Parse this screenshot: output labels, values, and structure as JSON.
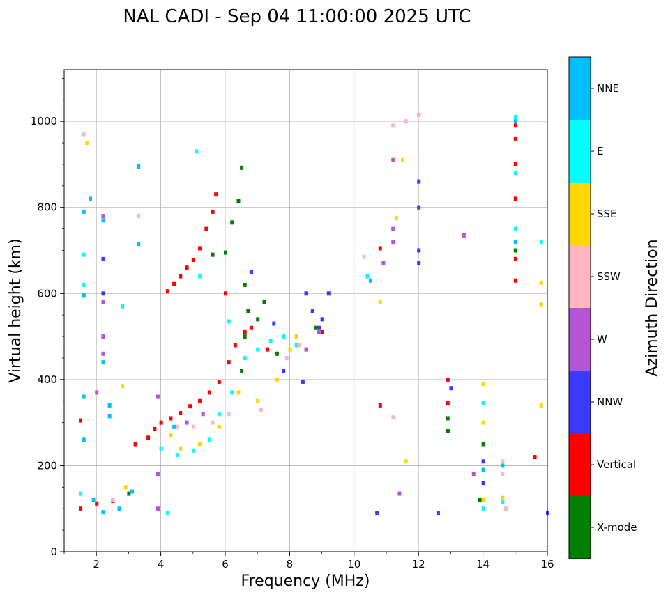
{
  "chart_data": {
    "type": "scatter",
    "title": "NAL CADI - Sep 04 11:00:00 2025 UTC",
    "xlabel": "Frequency (MHz)",
    "ylabel": "Virtual height (km)",
    "xlim": [
      1,
      16
    ],
    "ylim": [
      0,
      1120
    ],
    "xticks": [
      2,
      4,
      6,
      8,
      10,
      12,
      14,
      16
    ],
    "yticks": [
      0,
      200,
      400,
      600,
      800,
      1000
    ],
    "grid": true,
    "colorbar": {
      "label": "Azimuth Direction",
      "categories": [
        {
          "name": "X-mode",
          "color": "#008000"
        },
        {
          "name": "Vertical",
          "color": "#ff0000"
        },
        {
          "name": "NNW",
          "color": "#3a3aff"
        },
        {
          "name": "W",
          "color": "#b455d6"
        },
        {
          "name": "SSW",
          "color": "#ffb6c1"
        },
        {
          "name": "SSE",
          "color": "#ffd700"
        },
        {
          "name": "E",
          "color": "#00ffff"
        },
        {
          "name": "NNE",
          "color": "#00bfff"
        }
      ]
    },
    "series": [
      {
        "name": "Vertical",
        "points": [
          [
            1.5,
            100
          ],
          [
            2.0,
            112
          ],
          [
            2.5,
            118
          ],
          [
            3.2,
            250
          ],
          [
            3.6,
            265
          ],
          [
            3.8,
            285
          ],
          [
            4.0,
            300
          ],
          [
            4.3,
            310
          ],
          [
            4.6,
            322
          ],
          [
            4.9,
            338
          ],
          [
            5.2,
            350
          ],
          [
            5.5,
            370
          ],
          [
            5.8,
            395
          ],
          [
            6.1,
            440
          ],
          [
            6.3,
            480
          ],
          [
            6.6,
            510
          ],
          [
            4.2,
            605
          ],
          [
            4.4,
            622
          ],
          [
            4.6,
            640
          ],
          [
            4.8,
            660
          ],
          [
            5.0,
            678
          ],
          [
            5.2,
            705
          ],
          [
            5.4,
            750
          ],
          [
            5.6,
            790
          ],
          [
            5.7,
            830
          ],
          [
            6.0,
            600
          ],
          [
            6.8,
            520
          ],
          [
            7.3,
            470
          ],
          [
            9.0,
            510
          ],
          [
            10.8,
            340
          ],
          [
            10.8,
            705
          ],
          [
            12.9,
            280
          ],
          [
            12.9,
            345
          ],
          [
            12.9,
            400
          ],
          [
            15.0,
            630
          ],
          [
            15.0,
            680
          ],
          [
            15.0,
            820
          ],
          [
            15.0,
            900
          ],
          [
            15.0,
            960
          ],
          [
            15.0,
            990
          ],
          [
            15.6,
            220
          ],
          [
            1.5,
            305
          ]
        ]
      },
      {
        "name": "X-mode",
        "points": [
          [
            6.5,
            892
          ],
          [
            6.4,
            815
          ],
          [
            6.2,
            765
          ],
          [
            6.0,
            695
          ],
          [
            6.6,
            620
          ],
          [
            6.7,
            560
          ],
          [
            6.6,
            500
          ],
          [
            6.5,
            420
          ],
          [
            7.0,
            540
          ],
          [
            7.2,
            580
          ],
          [
            7.6,
            460
          ],
          [
            8.8,
            520
          ],
          [
            12.9,
            280
          ],
          [
            12.9,
            310
          ],
          [
            13.9,
            120
          ],
          [
            14.0,
            250
          ],
          [
            15.0,
            700
          ],
          [
            5.6,
            690
          ],
          [
            3.0,
            135
          ]
        ]
      },
      {
        "name": "NNW",
        "points": [
          [
            2.2,
            680
          ],
          [
            2.2,
            600
          ],
          [
            8.5,
            600
          ],
          [
            8.7,
            560
          ],
          [
            8.9,
            520
          ],
          [
            9.0,
            540
          ],
          [
            9.2,
            600
          ],
          [
            12.0,
            800
          ],
          [
            12.0,
            860
          ],
          [
            12.0,
            700
          ],
          [
            12.0,
            670
          ],
          [
            13.0,
            380
          ],
          [
            14.0,
            210
          ],
          [
            14.0,
            160
          ],
          [
            12.6,
            90
          ],
          [
            16.0,
            90
          ],
          [
            10.7,
            90
          ],
          [
            8.4,
            395
          ],
          [
            6.8,
            650
          ],
          [
            7.5,
            530
          ],
          [
            7.8,
            420
          ]
        ]
      },
      {
        "name": "W",
        "points": [
          [
            2.2,
            780
          ],
          [
            2.2,
            500
          ],
          [
            2.2,
            460
          ],
          [
            2.0,
            370
          ],
          [
            3.9,
            360
          ],
          [
            3.9,
            180
          ],
          [
            3.9,
            100
          ],
          [
            4.8,
            300
          ],
          [
            5.3,
            320
          ],
          [
            2.2,
            580
          ],
          [
            8.5,
            470
          ],
          [
            8.9,
            510
          ],
          [
            10.9,
            670
          ],
          [
            11.2,
            910
          ],
          [
            11.4,
            135
          ],
          [
            13.4,
            735
          ],
          [
            13.7,
            180
          ],
          [
            11.2,
            750
          ],
          [
            11.2,
            720
          ],
          [
            12.0,
            1015
          ]
        ]
      },
      {
        "name": "SSW",
        "points": [
          [
            1.6,
            970
          ],
          [
            3.3,
            780
          ],
          [
            4.5,
            290
          ],
          [
            5.0,
            290
          ],
          [
            5.6,
            300
          ],
          [
            6.1,
            320
          ],
          [
            7.1,
            330
          ],
          [
            7.9,
            450
          ],
          [
            8.3,
            480
          ],
          [
            11.2,
            990
          ],
          [
            11.6,
            1000
          ],
          [
            14.6,
            210
          ],
          [
            14.6,
            180
          ],
          [
            14.7,
            100
          ],
          [
            10.3,
            685
          ],
          [
            11.2,
            312
          ],
          [
            2.5,
            120
          ],
          [
            12.0,
            1015
          ]
        ]
      },
      {
        "name": "SSE",
        "points": [
          [
            1.7,
            950
          ],
          [
            2.8,
            385
          ],
          [
            2.9,
            150
          ],
          [
            4.3,
            270
          ],
          [
            4.6,
            240
          ],
          [
            5.2,
            250
          ],
          [
            5.8,
            290
          ],
          [
            6.4,
            370
          ],
          [
            7.0,
            350
          ],
          [
            7.6,
            400
          ],
          [
            8.0,
            470
          ],
          [
            8.2,
            500
          ],
          [
            11.5,
            910
          ],
          [
            11.3,
            775
          ],
          [
            11.6,
            210
          ],
          [
            14.0,
            390
          ],
          [
            14.0,
            300
          ],
          [
            14.0,
            120
          ],
          [
            15.8,
            625
          ],
          [
            15.8,
            575
          ],
          [
            15.8,
            340
          ],
          [
            10.8,
            580
          ],
          [
            14.6,
            125
          ]
        ]
      },
      {
        "name": "E",
        "points": [
          [
            1.6,
            690
          ],
          [
            1.6,
            620
          ],
          [
            2.8,
            570
          ],
          [
            4.0,
            240
          ],
          [
            4.5,
            225
          ],
          [
            5.0,
            235
          ],
          [
            5.5,
            260
          ],
          [
            5.8,
            320
          ],
          [
            6.2,
            370
          ],
          [
            6.6,
            450
          ],
          [
            7.0,
            470
          ],
          [
            7.4,
            490
          ],
          [
            7.8,
            500
          ],
          [
            5.2,
            640
          ],
          [
            5.1,
            930
          ],
          [
            6.1,
            535
          ],
          [
            8.2,
            480
          ],
          [
            14.0,
            345
          ],
          [
            14.0,
            100
          ],
          [
            15.0,
            750
          ],
          [
            15.0,
            880
          ],
          [
            15.0,
            1010
          ],
          [
            15.8,
            720
          ],
          [
            14.6,
            115
          ],
          [
            10.4,
            640
          ],
          [
            4.2,
            90
          ],
          [
            1.5,
            135
          ]
        ]
      },
      {
        "name": "NNE",
        "points": [
          [
            1.6,
            790
          ],
          [
            1.6,
            595
          ],
          [
            2.2,
            770
          ],
          [
            2.2,
            440
          ],
          [
            2.4,
            340
          ],
          [
            2.4,
            315
          ],
          [
            3.3,
            895
          ],
          [
            3.3,
            715
          ],
          [
            1.6,
            360
          ],
          [
            1.6,
            260
          ],
          [
            1.8,
            820
          ],
          [
            1.9,
            120
          ],
          [
            2.7,
            100
          ],
          [
            3.1,
            140
          ],
          [
            4.4,
            290
          ],
          [
            14.0,
            190
          ],
          [
            15.0,
            1000
          ],
          [
            15.0,
            720
          ],
          [
            14.6,
            200
          ],
          [
            10.5,
            630
          ],
          [
            2.2,
            92
          ]
        ]
      }
    ]
  }
}
